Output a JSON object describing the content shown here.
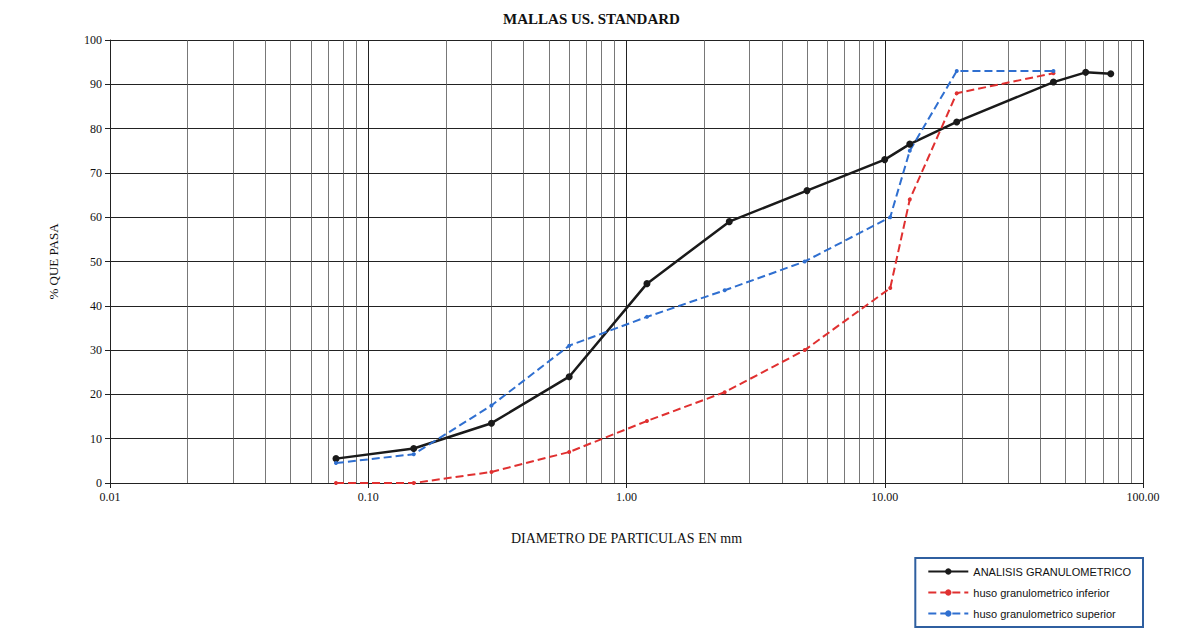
{
  "chart_data": {
    "type": "line",
    "title": "MALLAS US. STANDARD",
    "x_label": "DIAMETRO DE PARTICULAS EN mm",
    "y_label": "% QUE PASA",
    "log": "x",
    "grid": true,
    "legend": "lower right",
    "xlim": [
      0.01,
      100
    ],
    "xticks": [
      0.01,
      {
        "value": 0.1,
        "label": "0.10"
      },
      {
        "value": 1,
        "label": "1.00"
      },
      {
        "value": 10,
        "label": "10.00"
      },
      {
        "value": 100,
        "label": "100.00"
      }
    ],
    "ylim": [
      0,
      100
    ],
    "yticks": [
      0,
      10,
      20,
      30,
      40,
      50,
      60,
      70,
      80,
      90,
      100
    ],
    "series": [
      {
        "name": "ANALISIS GRANULOMETRICO",
        "color": "#1a1a1a",
        "marker": "circle",
        "line_style": "solid",
        "x": [
          0.075,
          0.15,
          0.3,
          0.6,
          1.2,
          2.5,
          5,
          10,
          12.5,
          19,
          45,
          60,
          75
        ],
        "values": [
          5.5,
          7.8,
          13.5,
          24,
          45,
          59,
          66,
          73,
          76.5,
          81.5,
          90.5,
          92.7,
          92.4
        ]
      },
      {
        "name": "huso granulometrico inferior",
        "color": "#e03030",
        "marker": "circle",
        "line_style": "dashed",
        "x": [
          0.075,
          0.15,
          0.3,
          0.6,
          1.2,
          2.4,
          4.9,
          10.5,
          12.5,
          19,
          45
        ],
        "values": [
          0,
          0,
          2.5,
          7,
          14,
          20.5,
          30,
          44,
          64,
          88,
          92.5
        ]
      },
      {
        "name": "huso granulometrico superior",
        "color": "#2f6fd0",
        "marker": "circle",
        "line_style": "dashed",
        "x": [
          0.075,
          0.15,
          0.3,
          0.6,
          1.2,
          2.4,
          4.9,
          10.5,
          12.5,
          19,
          45
        ],
        "values": [
          4.5,
          6.5,
          17.5,
          31,
          37.5,
          43.5,
          50,
          60,
          75,
          93,
          93
        ]
      }
    ]
  }
}
